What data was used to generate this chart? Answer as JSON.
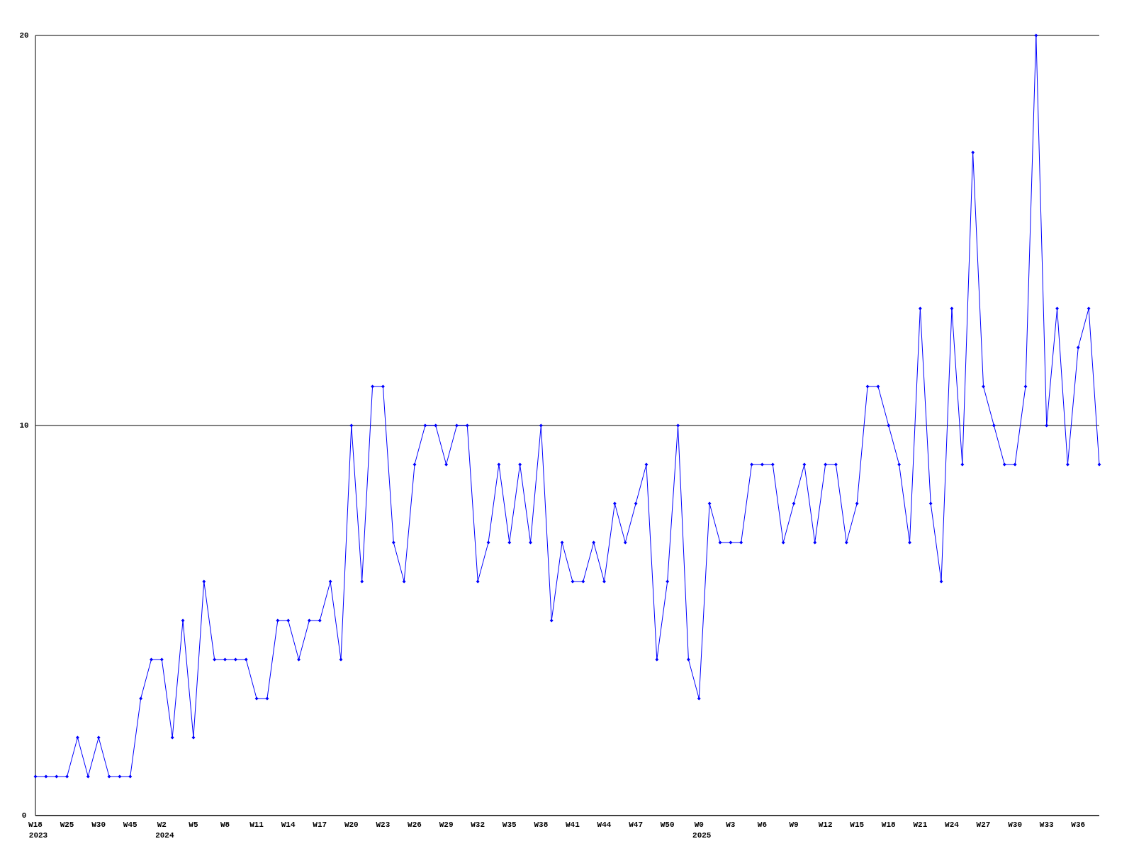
{
  "chart_data": {
    "type": "line",
    "color": "#0000ff",
    "marker": "diamond",
    "grid": "y",
    "ylim": [
      0,
      20
    ],
    "yticks": [
      0,
      10,
      20
    ],
    "categories": [
      "W18\n2023",
      null,
      null,
      "W25",
      null,
      null,
      "W30",
      null,
      null,
      "W45",
      null,
      null,
      "W2\n2024",
      null,
      null,
      "W5",
      null,
      null,
      "W8",
      null,
      null,
      "W11",
      null,
      null,
      "W14",
      null,
      null,
      "W17",
      null,
      null,
      "W20",
      null,
      null,
      "W23",
      null,
      null,
      "W26",
      null,
      null,
      "W29",
      null,
      null,
      "W32",
      null,
      null,
      "W35",
      null,
      null,
      "W38",
      null,
      null,
      "W41",
      null,
      null,
      "W44",
      null,
      null,
      "W47",
      null,
      null,
      "W50",
      null,
      null,
      "W0\n2025",
      null,
      null,
      "W3",
      null,
      null,
      "W6",
      null,
      null,
      "W9",
      null,
      null,
      "W12",
      null,
      null,
      "W15",
      null,
      null,
      "W18",
      null,
      null,
      "W21",
      null,
      null,
      "W24",
      null,
      null,
      "W27",
      null,
      null,
      "W30",
      null,
      null,
      "W33",
      null,
      null,
      "W36",
      null,
      null
    ],
    "values": [
      1,
      1,
      1,
      1,
      2,
      1,
      2,
      1,
      1,
      1,
      3,
      4,
      4,
      2,
      5,
      2,
      6,
      4,
      4,
      4,
      4,
      3,
      3,
      5,
      5,
      4,
      5,
      5,
      6,
      4,
      10,
      6,
      11,
      11,
      7,
      6,
      9,
      10,
      10,
      9,
      10,
      10,
      6,
      7,
      9,
      7,
      9,
      7,
      10,
      5,
      7,
      6,
      6,
      7,
      6,
      8,
      7,
      8,
      9,
      4,
      6,
      10,
      4,
      3,
      8,
      7,
      7,
      7,
      9,
      9,
      9,
      7,
      8,
      9,
      7,
      9,
      9,
      7,
      8,
      11,
      11,
      10,
      9,
      7,
      13,
      8,
      6,
      13,
      9,
      17,
      11,
      10,
      9,
      9,
      11,
      20,
      10,
      13,
      9,
      12,
      13,
      9
    ]
  }
}
